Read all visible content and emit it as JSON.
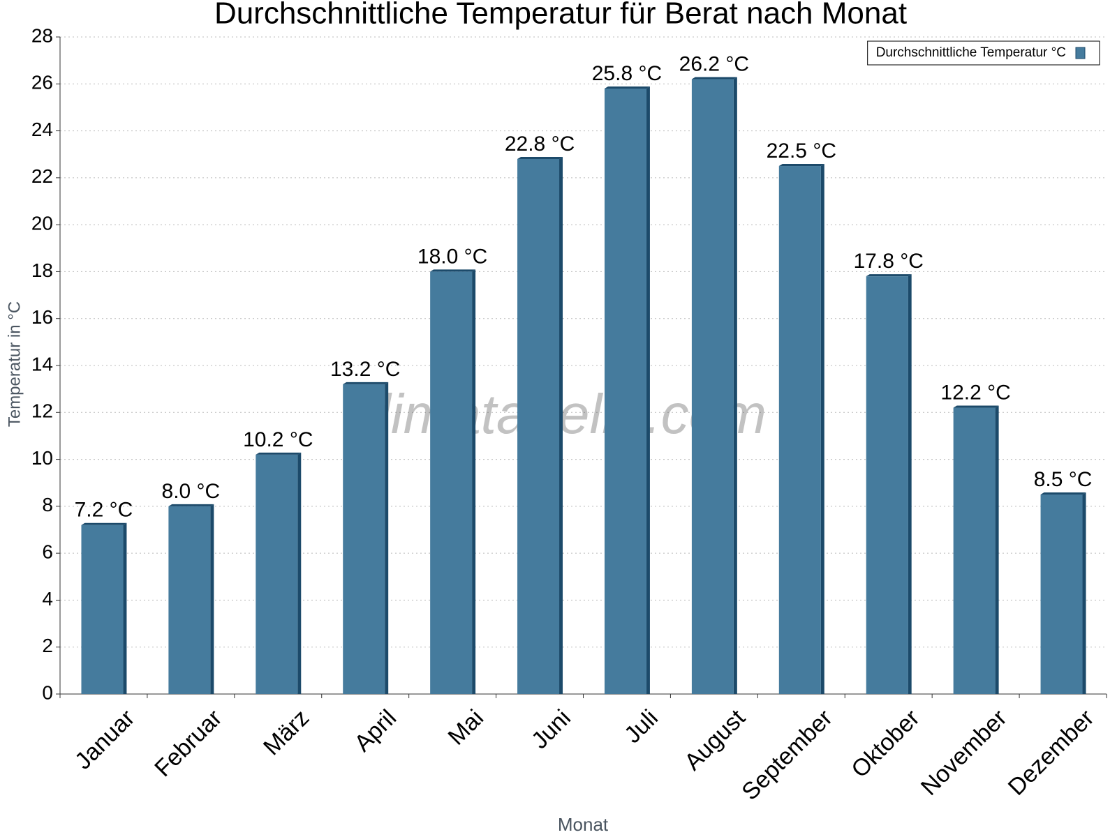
{
  "chart_data": {
    "type": "bar",
    "title": "Durchschnittliche Temperatur für Berat nach Monat",
    "x_label": "Monat",
    "y_label": "Temperatur in °C",
    "watermark": "klimatabelle.com",
    "categories": [
      "Januar",
      "Februar",
      "März",
      "April",
      "Mai",
      "Juni",
      "Juli",
      "August",
      "September",
      "Oktober",
      "November",
      "Dezember"
    ],
    "series": [
      {
        "name": "Durchschnittliche Temperatur °C",
        "color": "#457b9d",
        "values": [
          7.2,
          8.0,
          10.2,
          13.2,
          18.0,
          22.8,
          25.8,
          26.2,
          22.5,
          17.8,
          12.2,
          8.5
        ],
        "value_labels": [
          "7.2 °C",
          "8.0 °C",
          "10.2 °C",
          "13.2 °C",
          "18.0 °C",
          "22.8 °C",
          "25.8 °C",
          "26.2 °C",
          "22.5 °C",
          "17.8 °C",
          "12.2 °C",
          "8.5 °C"
        ]
      }
    ],
    "ylim": [
      0,
      28
    ],
    "yticks": [
      0,
      2,
      4,
      6,
      8,
      10,
      12,
      14,
      16,
      18,
      20,
      22,
      24,
      26,
      28
    ],
    "grid": true,
    "legend": "upper right"
  }
}
